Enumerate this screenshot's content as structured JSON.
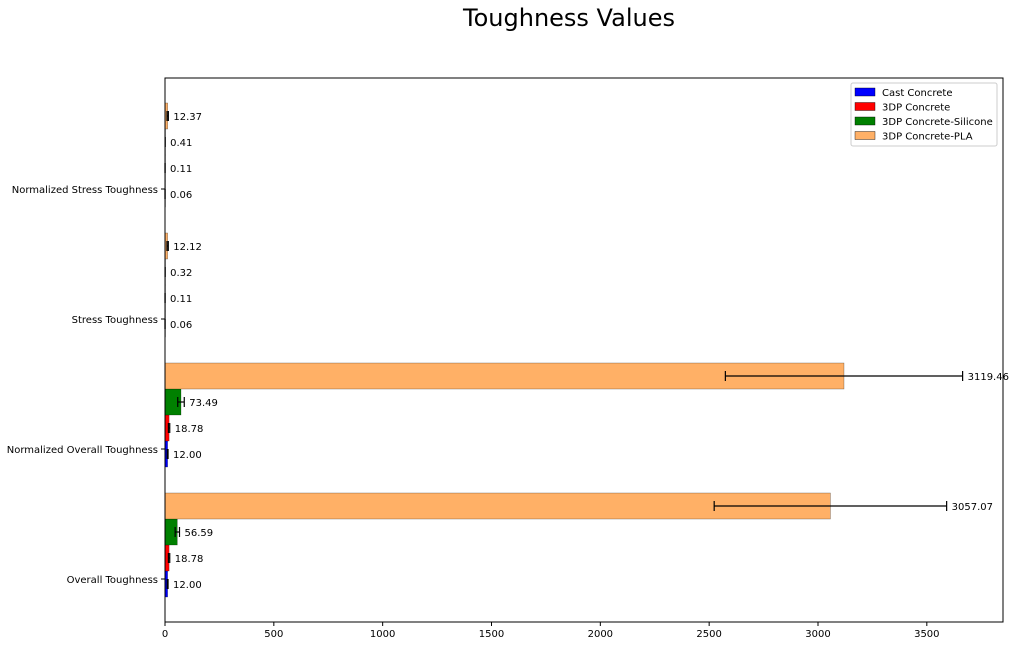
{
  "chart_data": {
    "type": "bar",
    "orientation": "horizontal",
    "title": "Toughness Values",
    "xlabel": "",
    "ylabel": "",
    "xlim": [
      0,
      3850
    ],
    "x_ticks": [
      0,
      500,
      1000,
      1500,
      2000,
      2500,
      3000,
      3500
    ],
    "grid": false,
    "legend_position": "top-right",
    "categories": [
      "Overall Toughness",
      "Normalized Overall Toughness",
      "Stress Toughness",
      "Normalized Stress Toughness"
    ],
    "series": [
      {
        "name": "Cast Concrete",
        "color": "#0000ff",
        "values": [
          12.0,
          12.0,
          0.06,
          0.06
        ],
        "errors": [
          2,
          2,
          0.02,
          0.02
        ],
        "labels": [
          "12.00",
          "12.00",
          "0.06",
          "0.06"
        ]
      },
      {
        "name": "3DP Concrete",
        "color": "#ff0000",
        "values": [
          18.78,
          18.78,
          0.11,
          0.11
        ],
        "errors": [
          3,
          3,
          0.03,
          0.03
        ],
        "labels": [
          "18.78",
          "18.78",
          "0.11",
          "0.11"
        ]
      },
      {
        "name": "3DP Concrete-Silicone",
        "color": "#008000",
        "values": [
          56.59,
          73.49,
          0.32,
          0.41
        ],
        "errors": [
          10,
          15,
          0.05,
          0.06
        ],
        "labels": [
          "56.59",
          "73.49",
          "0.32",
          "0.41"
        ]
      },
      {
        "name": "3DP Concrete-PLA",
        "color": "#ffb066",
        "values": [
          3057.07,
          3119.46,
          12.12,
          12.37
        ],
        "errors": [
          534,
          545,
          3,
          3
        ],
        "labels": [
          "3057.07",
          "3119.46",
          "12.12",
          "12.37"
        ]
      }
    ]
  }
}
